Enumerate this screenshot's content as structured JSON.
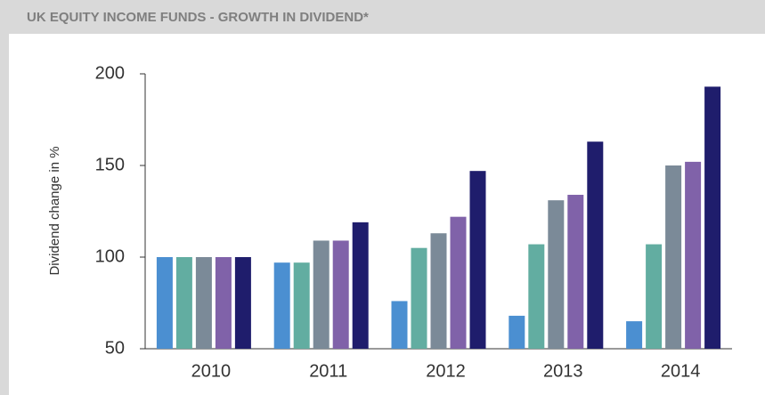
{
  "chart_data": {
    "type": "bar",
    "title": "UK EQUITY INCOME FUNDS - GROWTH IN DIVIDEND*",
    "ylabel": "Dividend change in %",
    "categories": [
      "2010",
      "2011",
      "2012",
      "2013",
      "2014"
    ],
    "series": [
      {
        "color": "#4b8fd1",
        "values": [
          100,
          97,
          76,
          68,
          65
        ]
      },
      {
        "color": "#62ada1",
        "values": [
          100,
          97,
          105,
          107,
          107
        ]
      },
      {
        "color": "#7b8a98",
        "values": [
          100,
          109,
          113,
          131,
          150
        ]
      },
      {
        "color": "#8062a9",
        "values": [
          100,
          109,
          122,
          134,
          152
        ]
      },
      {
        "color": "#1f1d6c",
        "values": [
          100,
          119,
          147,
          163,
          193
        ]
      }
    ],
    "ylim": [
      50,
      200
    ],
    "yticks": [
      50,
      100,
      150,
      200
    ],
    "grid": false
  }
}
